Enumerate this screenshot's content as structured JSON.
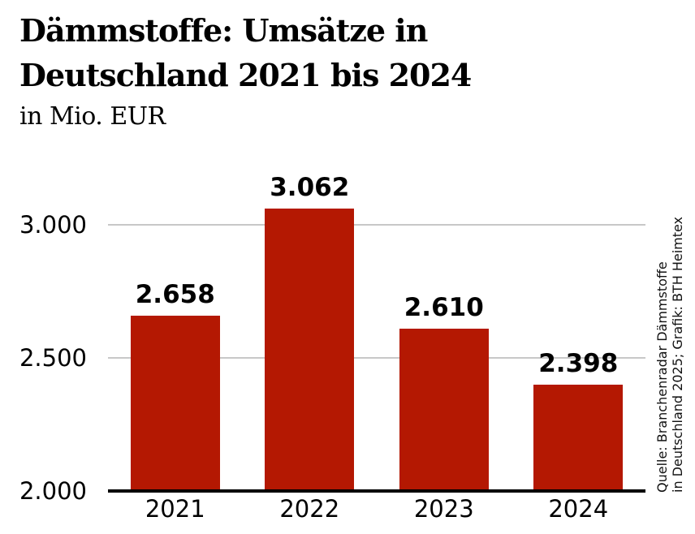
{
  "header": {
    "title_line1": "Dämmstoffe: Umsätze in",
    "title_line2": "Deutschland 2021 bis 2024",
    "subtitle": "in Mio. EUR"
  },
  "chart_data": {
    "type": "bar",
    "title": "Dämmstoffe: Umsätze in Deutschland 2021 bis 2024",
    "unit": "Mio. EUR",
    "categories": [
      "2021",
      "2022",
      "2023",
      "2024"
    ],
    "values": [
      2658,
      3062,
      2610,
      2398
    ],
    "value_labels": [
      "2.658",
      "3.062",
      "2.610",
      "2.398"
    ],
    "ylim": [
      2000,
      3100
    ],
    "y_ticks": [
      {
        "value": 2000,
        "label": "2.000"
      },
      {
        "value": 2500,
        "label": "2.500"
      },
      {
        "value": 3000,
        "label": "3.000"
      }
    ],
    "grid": "horizontal",
    "legend": "none",
    "bar_color": "#b41802"
  },
  "source": {
    "line1": "Quelle: Branchenradar Dämmstoffe",
    "line2": "in Deutschland 2025; Grafik: BTH Heimtex"
  },
  "colors": {
    "bar": "#b41802",
    "gridline": "#c8c8c8",
    "baseline": "#000000",
    "text": "#000000",
    "background": "#ffffff"
  }
}
